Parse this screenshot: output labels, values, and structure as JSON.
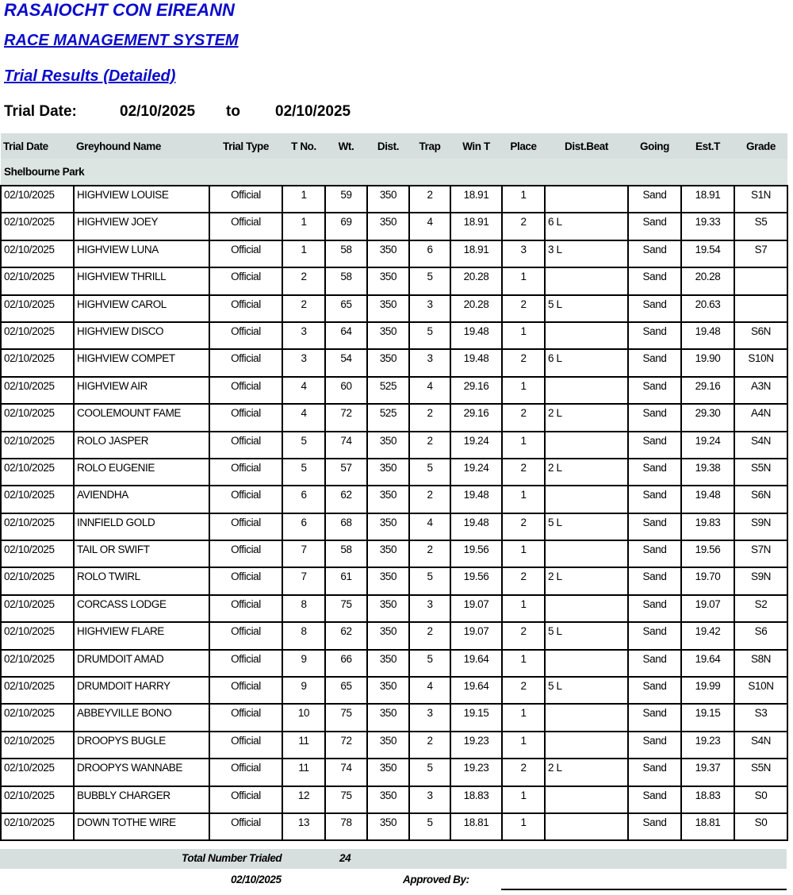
{
  "header": {
    "org": "RASAIOCHT CON EIREANN",
    "system": "RACE MANAGEMENT SYSTEM",
    "report": "Trial Results (Detailed)",
    "date_label": "Trial Date:",
    "date_from": "02/10/2025",
    "to_label": "to",
    "date_to": "02/10/2025"
  },
  "table": {
    "columns": [
      "Trial Date",
      "Greyhound Name",
      "Trial Type",
      "T No.",
      "Wt.",
      "Dist.",
      "Trap",
      "Win T",
      "Place",
      "Dist.Beat",
      "Going",
      "Est.T",
      "Grade"
    ],
    "venue": "Shelbourne Park",
    "rows": [
      [
        "02/10/2025",
        "HIGHVIEW LOUISE",
        "Official",
        "1",
        "59",
        "350",
        "2",
        "18.91",
        "1",
        "",
        "Sand",
        "18.91",
        "S1N"
      ],
      [
        "02/10/2025",
        "HIGHVIEW JOEY",
        "Official",
        "1",
        "69",
        "350",
        "4",
        "18.91",
        "2",
        "6 L",
        "Sand",
        "19.33",
        "S5"
      ],
      [
        "02/10/2025",
        "HIGHVIEW LUNA",
        "Official",
        "1",
        "58",
        "350",
        "6",
        "18.91",
        "3",
        "3 L",
        "Sand",
        "19.54",
        "S7"
      ],
      [
        "02/10/2025",
        "HIGHVIEW THRILL",
        "Official",
        "2",
        "58",
        "350",
        "5",
        "20.28",
        "1",
        "",
        "Sand",
        "20.28",
        ""
      ],
      [
        "02/10/2025",
        "HIGHVIEW CAROL",
        "Official",
        "2",
        "65",
        "350",
        "3",
        "20.28",
        "2",
        "5 L",
        "Sand",
        "20.63",
        ""
      ],
      [
        "02/10/2025",
        "HIGHVIEW DISCO",
        "Official",
        "3",
        "64",
        "350",
        "5",
        "19.48",
        "1",
        "",
        "Sand",
        "19.48",
        "S6N"
      ],
      [
        "02/10/2025",
        "HIGHVIEW COMPET",
        "Official",
        "3",
        "54",
        "350",
        "3",
        "19.48",
        "2",
        "6 L",
        "Sand",
        "19.90",
        "S10N"
      ],
      [
        "02/10/2025",
        "HIGHVIEW AIR",
        "Official",
        "4",
        "60",
        "525",
        "4",
        "29.16",
        "1",
        "",
        "Sand",
        "29.16",
        "A3N"
      ],
      [
        "02/10/2025",
        "COOLEMOUNT FAME",
        "Official",
        "4",
        "72",
        "525",
        "2",
        "29.16",
        "2",
        "2 L",
        "Sand",
        "29.30",
        "A4N"
      ],
      [
        "02/10/2025",
        "ROLO JASPER",
        "Official",
        "5",
        "74",
        "350",
        "2",
        "19.24",
        "1",
        "",
        "Sand",
        "19.24",
        "S4N"
      ],
      [
        "02/10/2025",
        "ROLO EUGENIE",
        "Official",
        "5",
        "57",
        "350",
        "5",
        "19.24",
        "2",
        "2 L",
        "Sand",
        "19.38",
        "S5N"
      ],
      [
        "02/10/2025",
        "AVIENDHA",
        "Official",
        "6",
        "62",
        "350",
        "2",
        "19.48",
        "1",
        "",
        "Sand",
        "19.48",
        "S6N"
      ],
      [
        "02/10/2025",
        "INNFIELD GOLD",
        "Official",
        "6",
        "68",
        "350",
        "4",
        "19.48",
        "2",
        "5 L",
        "Sand",
        "19.83",
        "S9N"
      ],
      [
        "02/10/2025",
        "TAIL OR SWIFT",
        "Official",
        "7",
        "58",
        "350",
        "2",
        "19.56",
        "1",
        "",
        "Sand",
        "19.56",
        "S7N"
      ],
      [
        "02/10/2025",
        "ROLO TWIRL",
        "Official",
        "7",
        "61",
        "350",
        "5",
        "19.56",
        "2",
        "2 L",
        "Sand",
        "19.70",
        "S9N"
      ],
      [
        "02/10/2025",
        "CORCASS LODGE",
        "Official",
        "8",
        "75",
        "350",
        "3",
        "19.07",
        "1",
        "",
        "Sand",
        "19.07",
        "S2"
      ],
      [
        "02/10/2025",
        "HIGHVIEW FLARE",
        "Official",
        "8",
        "62",
        "350",
        "2",
        "19.07",
        "2",
        "5 L",
        "Sand",
        "19.42",
        "S6"
      ],
      [
        "02/10/2025",
        "DRUMDOIT AMAD",
        "Official",
        "9",
        "66",
        "350",
        "5",
        "19.64",
        "1",
        "",
        "Sand",
        "19.64",
        "S8N"
      ],
      [
        "02/10/2025",
        "DRUMDOIT HARRY",
        "Official",
        "9",
        "65",
        "350",
        "4",
        "19.64",
        "2",
        "5 L",
        "Sand",
        "19.99",
        "S10N"
      ],
      [
        "02/10/2025",
        "ABBEYVILLE BONO",
        "Official",
        "10",
        "75",
        "350",
        "3",
        "19.15",
        "1",
        "",
        "Sand",
        "19.15",
        "S3"
      ],
      [
        "02/10/2025",
        "DROOPYS BUGLE",
        "Official",
        "11",
        "72",
        "350",
        "2",
        "19.23",
        "1",
        "",
        "Sand",
        "19.23",
        "S4N"
      ],
      [
        "02/10/2025",
        "DROOPYS WANNABE",
        "Official",
        "11",
        "74",
        "350",
        "5",
        "19.23",
        "2",
        "2 L",
        "Sand",
        "19.37",
        "S5N"
      ],
      [
        "02/10/2025",
        "BUBBLY CHARGER",
        "Official",
        "12",
        "75",
        "350",
        "3",
        "18.83",
        "1",
        "",
        "Sand",
        "18.83",
        "S0"
      ],
      [
        "02/10/2025",
        "DOWN TOTHE WIRE",
        "Official",
        "13",
        "78",
        "350",
        "5",
        "18.81",
        "1",
        "",
        "Sand",
        "18.81",
        "S0"
      ]
    ]
  },
  "footer": {
    "total_label": "Total Number Trialed",
    "total_value": "24",
    "print_date": "02/10/2025",
    "approved_label": "Approved By:"
  },
  "colors": {
    "title": "#0b0bcc",
    "header_bg": "#d6dfdd"
  }
}
